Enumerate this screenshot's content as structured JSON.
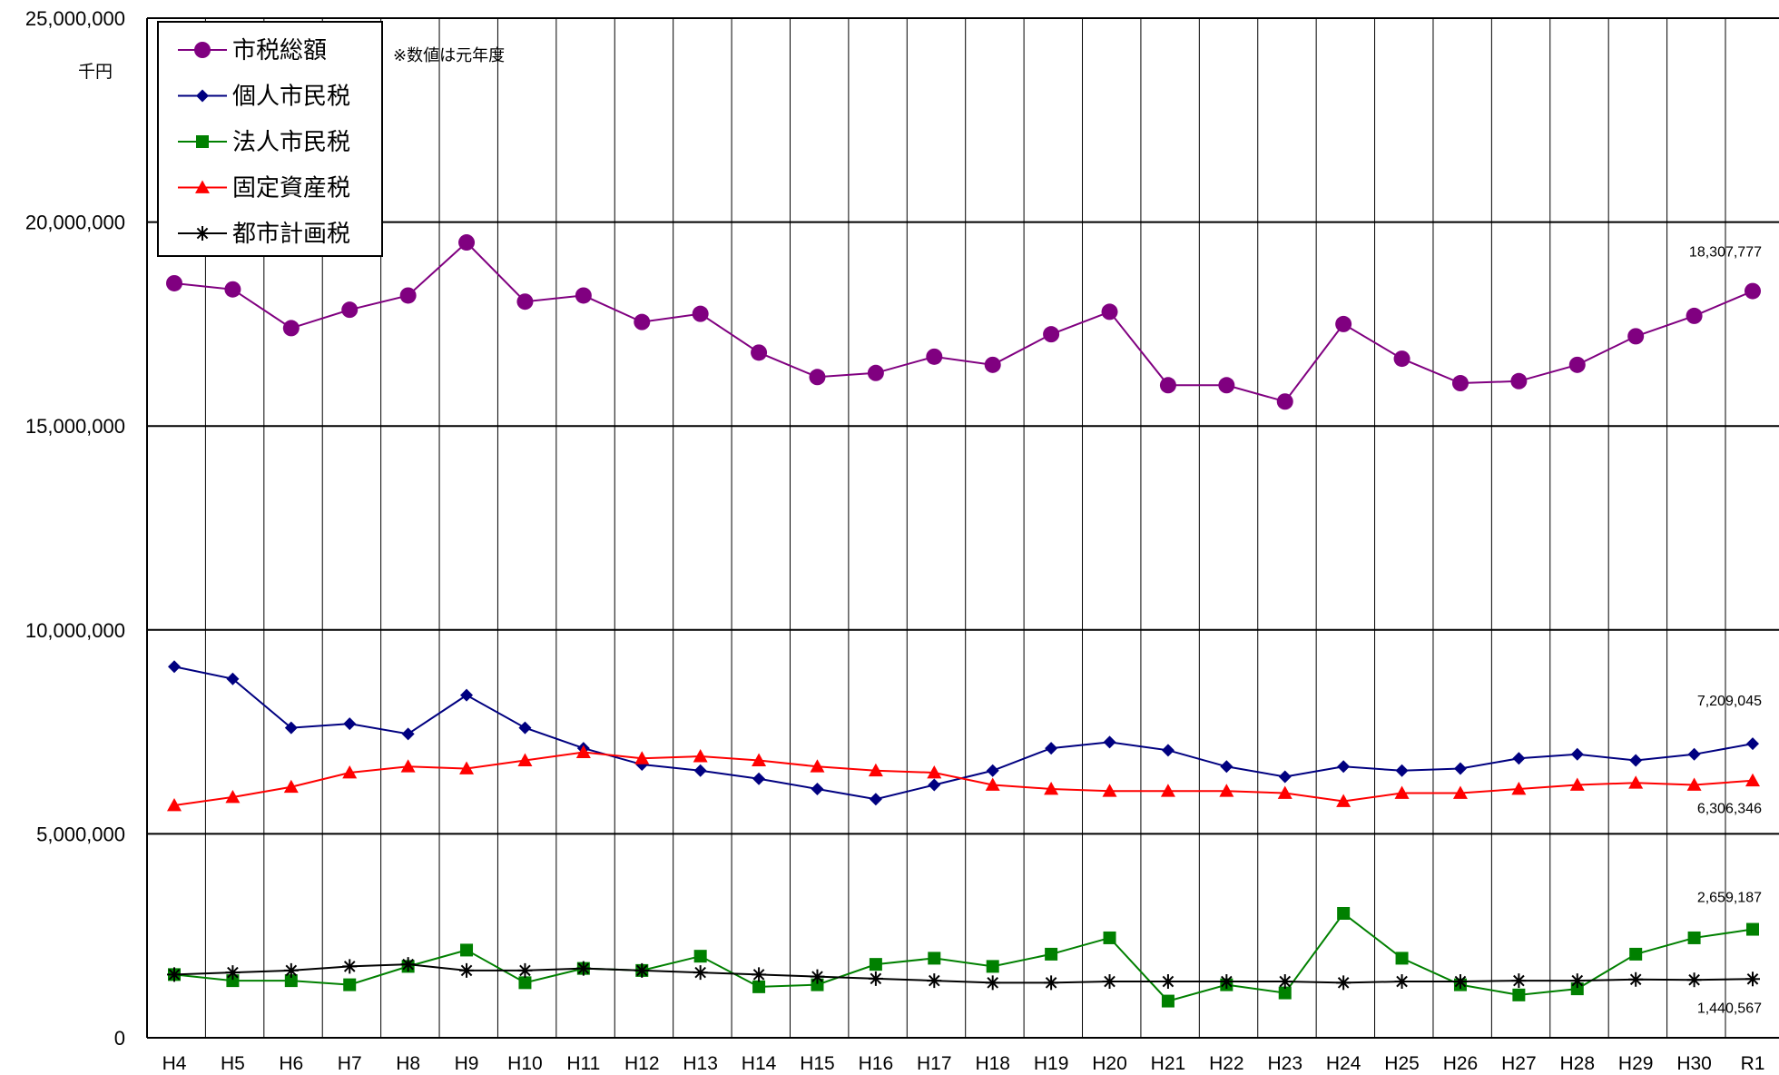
{
  "chart_data": {
    "type": "line",
    "unit_label": "千円",
    "note": "※数値は元年度",
    "categories": [
      "H4",
      "H5",
      "H6",
      "H7",
      "H8",
      "H9",
      "H10",
      "H11",
      "H12",
      "H13",
      "H14",
      "H15",
      "H16",
      "H17",
      "H18",
      "H19",
      "H20",
      "H21",
      "H22",
      "H23",
      "H24",
      "H25",
      "H26",
      "H27",
      "H28",
      "H29",
      "H30",
      "R1"
    ],
    "y_ticks": [
      "0",
      "5,000,000",
      "10,000,000",
      "15,000,000",
      "20,000,000",
      "25,000,000"
    ],
    "ylim": [
      0,
      25000000
    ],
    "grid": "horizontal and vertical",
    "legend": "top-left",
    "series": [
      {
        "name": "市税総額",
        "color": "#800080",
        "marker": "circle",
        "values": [
          18500000,
          18350000,
          17400000,
          17850000,
          18200000,
          19500000,
          18050000,
          18200000,
          17550000,
          17750000,
          16800000,
          16200000,
          16300000,
          16700000,
          16500000,
          17250000,
          17800000,
          16000000,
          16000000,
          15600000,
          17500000,
          16650000,
          16050000,
          16100000,
          16500000,
          17200000,
          17700000,
          18307777
        ]
      },
      {
        "name": "個人市民税",
        "color": "#000080",
        "marker": "diamond",
        "values": [
          9100000,
          8800000,
          7600000,
          7700000,
          7450000,
          8400000,
          7600000,
          7100000,
          6700000,
          6550000,
          6350000,
          6100000,
          5850000,
          6200000,
          6550000,
          7100000,
          7250000,
          7050000,
          6650000,
          6400000,
          6650000,
          6550000,
          6600000,
          6850000,
          6950000,
          6800000,
          6950000,
          7209045
        ]
      },
      {
        "name": "法人市民税",
        "color": "#008000",
        "marker": "square",
        "values": [
          1550000,
          1400000,
          1400000,
          1300000,
          1750000,
          2150000,
          1350000,
          1700000,
          1650000,
          2000000,
          1250000,
          1300000,
          1800000,
          1950000,
          1750000,
          2050000,
          2450000,
          900000,
          1300000,
          1100000,
          3050000,
          1950000,
          1300000,
          1050000,
          1200000,
          2050000,
          2450000,
          2659187
        ]
      },
      {
        "name": "固定資産税",
        "color": "#ff0000",
        "marker": "triangle",
        "values": [
          5700000,
          5900000,
          6150000,
          6500000,
          6650000,
          6600000,
          6800000,
          7000000,
          6850000,
          6900000,
          6800000,
          6650000,
          6550000,
          6500000,
          6200000,
          6100000,
          6050000,
          6050000,
          6050000,
          6000000,
          5800000,
          6000000,
          6000000,
          6100000,
          6200000,
          6250000,
          6200000,
          6306346
        ]
      },
      {
        "name": "都市計画税",
        "color": "#000000",
        "marker": "asterisk",
        "values": [
          1550000,
          1600000,
          1650000,
          1750000,
          1800000,
          1650000,
          1650000,
          1700000,
          1650000,
          1600000,
          1550000,
          1500000,
          1450000,
          1400000,
          1350000,
          1350000,
          1380000,
          1380000,
          1380000,
          1380000,
          1350000,
          1380000,
          1380000,
          1400000,
          1400000,
          1430000,
          1420000,
          1440567
        ]
      }
    ],
    "data_labels": [
      {
        "series": "市税総額",
        "text": "18,307,777"
      },
      {
        "series": "個人市民税",
        "text": "7,209,045"
      },
      {
        "series": "固定資産税",
        "text": "6,306,346"
      },
      {
        "series": "法人市民税",
        "text": "2,659,187"
      },
      {
        "series": "都市計画税",
        "text": "1,440,567"
      }
    ]
  }
}
